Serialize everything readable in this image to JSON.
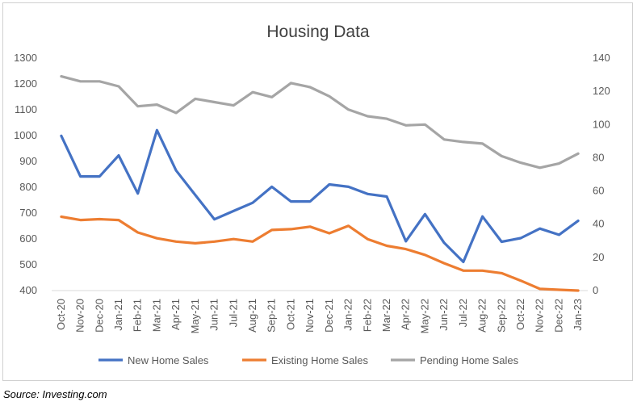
{
  "source_note": "Source:  Investing.com",
  "chart_data": {
    "type": "line",
    "title": "Housing Data",
    "categories": [
      "Oct-20",
      "Nov-20",
      "Dec-20",
      "Jan-21",
      "Feb-21",
      "Mar-21",
      "Apr-21",
      "May-21",
      "Jun-21",
      "Jul-21",
      "Aug-21",
      "Sep-21",
      "Oct-21",
      "Nov-21",
      "Dec-21",
      "Jan-22",
      "Feb-22",
      "Mar-22",
      "Apr-22",
      "May-22",
      "Jun-22",
      "Jul-22",
      "Aug-22",
      "Sep-22",
      "Oct-22",
      "Nov-22",
      "Dec-22",
      "Jan-23"
    ],
    "y_left": {
      "min": 400,
      "max": 1300,
      "ticks": [
        400,
        500,
        600,
        700,
        800,
        900,
        1000,
        1100,
        1200,
        1300
      ]
    },
    "y_right": {
      "min": 0,
      "max": 140,
      "ticks": [
        0,
        20,
        40,
        60,
        80,
        100,
        120,
        140
      ]
    },
    "grid": false,
    "legend_position": "bottom",
    "series": [
      {
        "name": "New Home Sales",
        "axis": "left",
        "color": "#4472C4",
        "values": [
          999,
          842,
          842,
          923,
          776,
          1021,
          865,
          770,
          676,
          708,
          740,
          802,
          745,
          745,
          811,
          802,
          774,
          764,
          591,
          696,
          585,
          511,
          687,
          589,
          603,
          640,
          616,
          670
        ]
      },
      {
        "name": "Existing Home Sales",
        "axis": "right",
        "color": "#ED7D31",
        "values": [
          44.5,
          42.5,
          43.0,
          42.5,
          35.0,
          31.5,
          29.5,
          28.5,
          29.5,
          31.0,
          29.5,
          36.5,
          37.0,
          38.5,
          34.5,
          39.0,
          31.0,
          27.0,
          25.0,
          21.5,
          16.5,
          12.0,
          12.0,
          10.5,
          6.0,
          1.0,
          0.5,
          0.0
        ]
      },
      {
        "name": "Pending Home Sales",
        "axis": "right",
        "color": "#A5A5A5",
        "values": [
          129.0,
          126.0,
          126.0,
          123.0,
          111.0,
          112.0,
          107.0,
          115.5,
          113.5,
          111.5,
          119.5,
          116.5,
          125.0,
          122.5,
          117.0,
          109.0,
          105.0,
          103.5,
          99.5,
          100.0,
          91.0,
          89.5,
          88.5,
          81.0,
          77.0,
          74.0,
          76.5,
          82.5
        ]
      }
    ]
  }
}
